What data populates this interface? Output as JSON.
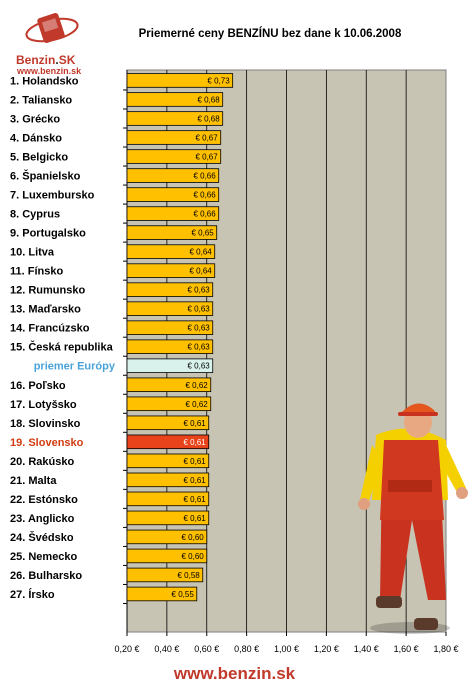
{
  "brand": {
    "name_a": "Benzin",
    "name_b": "SK",
    "url": "www.benzin.sk"
  },
  "footer": {
    "url": "www.benzin.sk"
  },
  "colors": {
    "bar": "#ffc000",
    "highlight": "#e8431b",
    "average": "#d9f3ec",
    "plot_bg": "#c8c4b4",
    "label_highlight": "#d23c10",
    "label_average": "#4aa3d8"
  },
  "chart_data": {
    "type": "bar",
    "orientation": "horizontal",
    "title": "Priemerné ceny BENZÍNU bez dane k 10.06.2008",
    "categories": [
      "1. Holandsko",
      "2. Taliansko",
      "3. Grécko",
      "4. Dánsko",
      "5. Belgicko",
      "6. Španielsko",
      "7. Luxembursko",
      "8. Cyprus",
      "9. Portugalsko",
      "10. Litva",
      "11. Fínsko",
      "12. Rumunsko",
      "13. Maďarsko",
      "14. Francúzsko",
      "15. Česká republika",
      "priemer Európy",
      "16. Poľsko",
      "17. Lotyšsko",
      "18. Slovinsko",
      "19. Slovensko",
      "20. Rakúsko",
      "21. Malta",
      "22. Estónsko",
      "23. Anglicko",
      "24. Švédsko",
      "25. Nemecko",
      "26. Bulharsko",
      "27. Írsko"
    ],
    "values": [
      0.73,
      0.68,
      0.68,
      0.67,
      0.67,
      0.66,
      0.66,
      0.66,
      0.65,
      0.64,
      0.64,
      0.63,
      0.63,
      0.63,
      0.63,
      0.63,
      0.62,
      0.62,
      0.61,
      0.61,
      0.61,
      0.61,
      0.61,
      0.61,
      0.6,
      0.6,
      0.58,
      0.55
    ],
    "value_labels": [
      "€ 0,73",
      "€ 0,68",
      "€ 0,68",
      "€ 0,67",
      "€ 0,67",
      "€ 0,66",
      "€ 0,66",
      "€ 0,66",
      "€ 0,65",
      "€ 0,64",
      "€ 0,64",
      "€ 0,63",
      "€ 0,63",
      "€ 0,63",
      "€ 0,63",
      "€ 0,63",
      "€ 0,62",
      "€ 0,62",
      "€ 0,61",
      "€ 0,61",
      "€ 0,61",
      "€ 0,61",
      "€ 0,61",
      "€ 0,61",
      "€ 0,60",
      "€ 0,60",
      "€ 0,58",
      "€ 0,55"
    ],
    "highlight_index": 19,
    "average_index": 15,
    "xlim": [
      0.2,
      1.8
    ],
    "xticks": [
      0.2,
      0.4,
      0.6,
      0.8,
      1.0,
      1.2,
      1.4,
      1.6,
      1.8
    ],
    "xtick_labels": [
      "0,20 €",
      "0,40 €",
      "0,60 €",
      "0,80 €",
      "1,00 €",
      "1,20 €",
      "1,40 €",
      "1,60 €",
      "1,80 €"
    ],
    "grid": true
  }
}
